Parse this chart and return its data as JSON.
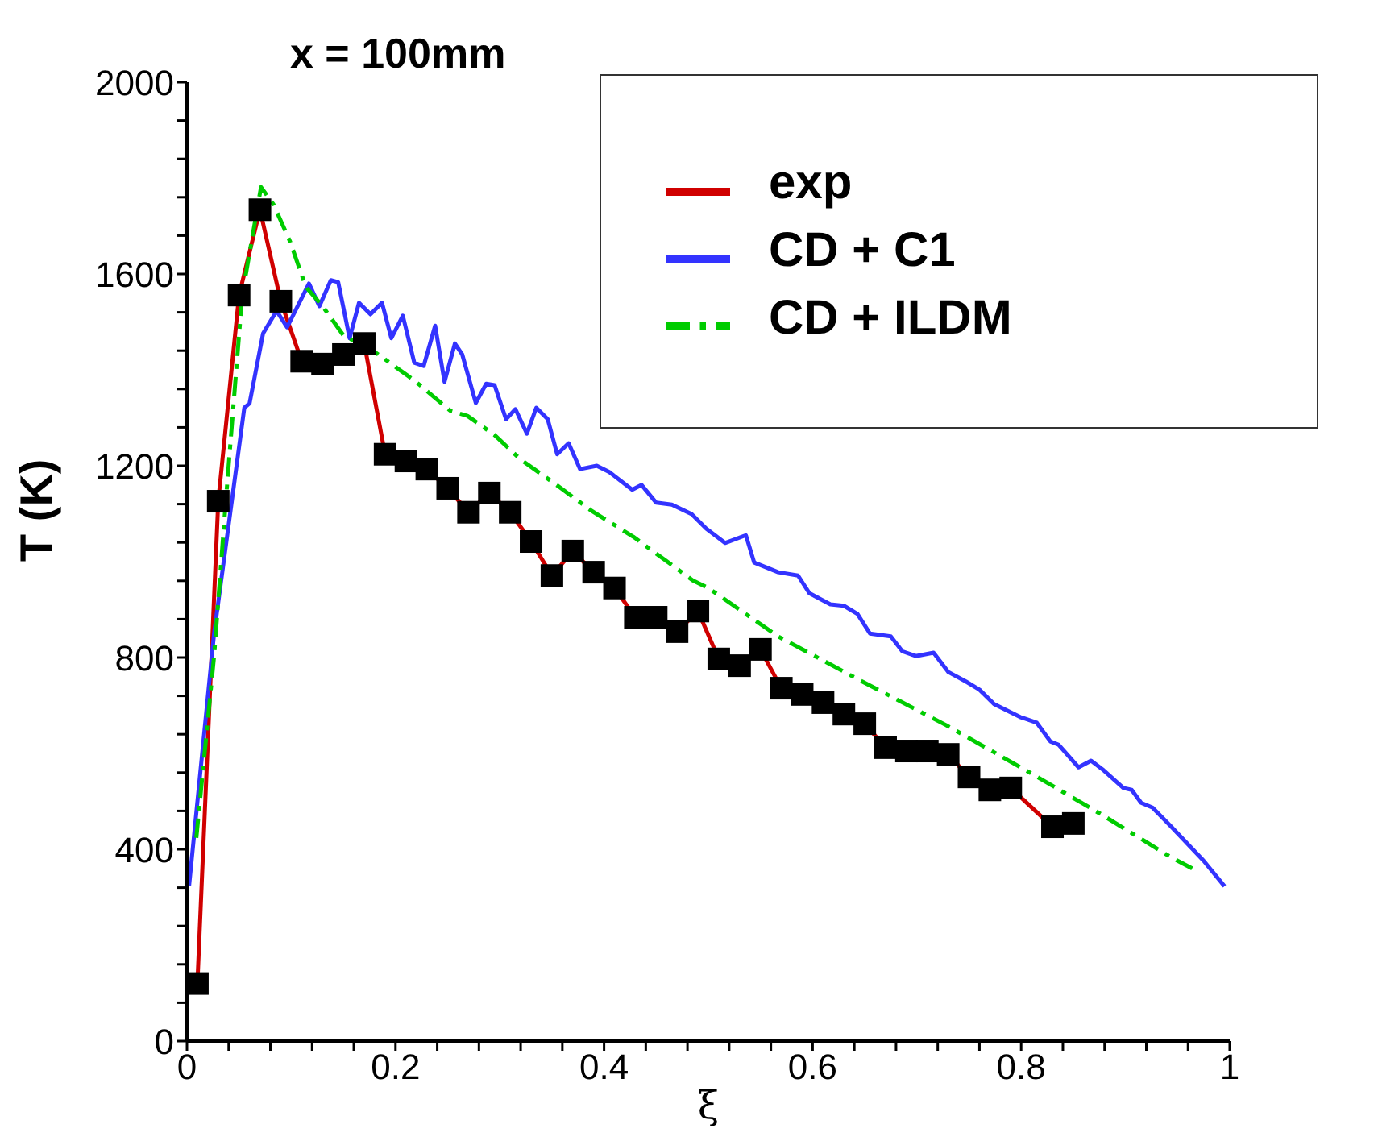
{
  "chart_data": {
    "type": "line",
    "title": "x = 100mm",
    "xlabel": "ξ",
    "ylabel": "T (K)",
    "xlim": [
      0,
      1
    ],
    "ylim": [
      0,
      2000
    ],
    "xticks": [
      0,
      {
        "value": 0.04,
        "label": null
      },
      {
        "value": 0.08,
        "label": null
      },
      {
        "value": 0.12,
        "label": null
      },
      {
        "value": 0.16,
        "label": null
      },
      0.2,
      {
        "value": 0.24,
        "label": null
      },
      {
        "value": 0.28,
        "label": null
      },
      {
        "value": 0.32,
        "label": null
      },
      {
        "value": 0.36,
        "label": null
      },
      0.4,
      {
        "value": 0.44,
        "label": null
      },
      {
        "value": 0.48,
        "label": null
      },
      {
        "value": 0.52,
        "label": null
      },
      {
        "value": 0.56,
        "label": null
      },
      0.6,
      {
        "value": 0.64,
        "label": null
      },
      {
        "value": 0.68,
        "label": null
      },
      {
        "value": 0.72,
        "label": null
      },
      {
        "value": 0.76,
        "label": null
      },
      0.8,
      {
        "value": 0.84,
        "label": null
      },
      {
        "value": 0.88,
        "label": null
      },
      {
        "value": 0.92,
        "label": null
      },
      {
        "value": 0.96,
        "label": null
      },
      1
    ],
    "yticks": [
      0,
      {
        "value": 80,
        "label": null
      },
      {
        "value": 160,
        "label": null
      },
      {
        "value": 240,
        "label": null
      },
      {
        "value": 320,
        "label": null
      },
      400,
      {
        "value": 480,
        "label": null
      },
      {
        "value": 560,
        "label": null
      },
      {
        "value": 640,
        "label": null
      },
      {
        "value": 720,
        "label": null
      },
      800,
      {
        "value": 880,
        "label": null
      },
      {
        "value": 960,
        "label": null
      },
      {
        "value": 1040,
        "label": null
      },
      {
        "value": 1120,
        "label": null
      },
      1200,
      {
        "value": 1280,
        "label": null
      },
      {
        "value": 1360,
        "label": null
      },
      {
        "value": 1440,
        "label": null
      },
      {
        "value": 1520,
        "label": null
      },
      1600,
      {
        "value": 1680,
        "label": null
      },
      {
        "value": 1760,
        "label": null
      },
      {
        "value": 1840,
        "label": null
      },
      {
        "value": 1920,
        "label": null
      },
      2000
    ],
    "grid": false,
    "legend": "top right",
    "series": [
      {
        "name": "exp",
        "color": "#d00000",
        "marker": "square",
        "line_style": "solid",
        "x": [
          0.01,
          0.03,
          0.05,
          0.07,
          0.09,
          0.11,
          0.13,
          0.15,
          0.17,
          0.19,
          0.21,
          0.23,
          0.25,
          0.27,
          0.29,
          0.31,
          0.33,
          0.35,
          0.37,
          0.39,
          0.41,
          0.43,
          0.45,
          0.47,
          0.49,
          0.51,
          0.53,
          0.55,
          0.57,
          0.59,
          0.61,
          0.63,
          0.65,
          0.67,
          0.69,
          0.71,
          0.73,
          0.75,
          0.77,
          0.79,
          0.83,
          0.85
        ],
        "values": [
          120,
          1126,
          1556,
          1734,
          1543,
          1418,
          1412,
          1432,
          1455,
          1224,
          1210,
          1193,
          1153,
          1103,
          1143,
          1103,
          1042,
          971,
          1022,
          978,
          945,
          884,
          884,
          854,
          897,
          797,
          783,
          817,
          736,
          723,
          706,
          682,
          662,
          612,
          605,
          605,
          598,
          551,
          524,
          528,
          447,
          454
        ]
      },
      {
        "name": "CD + C1",
        "color": "#3333ff",
        "marker": "none",
        "line_style": "solid",
        "x": [
          0.002,
          0.026,
          0.055,
          0.06,
          0.073,
          0.086,
          0.096,
          0.117,
          0.127,
          0.138,
          0.145,
          0.156,
          0.165,
          0.176,
          0.187,
          0.196,
          0.207,
          0.218,
          0.227,
          0.238,
          0.247,
          0.257,
          0.264,
          0.277,
          0.287,
          0.295,
          0.306,
          0.315,
          0.326,
          0.335,
          0.346,
          0.355,
          0.366,
          0.377,
          0.393,
          0.405,
          0.427,
          0.436,
          0.45,
          0.465,
          0.484,
          0.498,
          0.516,
          0.536,
          0.544,
          0.567,
          0.586,
          0.597,
          0.617,
          0.63,
          0.643,
          0.655,
          0.675,
          0.686,
          0.699,
          0.716,
          0.73,
          0.747,
          0.76,
          0.774,
          0.799,
          0.815,
          0.828,
          0.836,
          0.855,
          0.867,
          0.879,
          0.898,
          0.906,
          0.915,
          0.926,
          0.944,
          0.975,
          0.995
        ],
        "values": [
          323,
          850,
          1321,
          1330,
          1476,
          1523,
          1489,
          1580,
          1533,
          1587,
          1583,
          1466,
          1540,
          1516,
          1540,
          1466,
          1513,
          1415,
          1408,
          1492,
          1375,
          1455,
          1432,
          1331,
          1371,
          1368,
          1297,
          1318,
          1267,
          1321,
          1297,
          1224,
          1247,
          1193,
          1200,
          1187,
          1150,
          1160,
          1123,
          1119,
          1099,
          1069,
          1039,
          1055,
          998,
          978,
          971,
          934,
          911,
          908,
          891,
          850,
          844,
          813,
          803,
          810,
          770,
          750,
          733,
          703,
          676,
          664,
          625,
          618,
          571,
          585,
          565,
          528,
          524,
          497,
          487,
          447,
          376,
          323
        ]
      },
      {
        "name": "CD + ILDM",
        "color": "#00cc00",
        "marker": "none",
        "line_style": "dashed",
        "x": [
          0.009,
          0.026,
          0.037,
          0.053,
          0.071,
          0.083,
          0.099,
          0.114,
          0.13,
          0.15,
          0.179,
          0.218,
          0.253,
          0.269,
          0.295,
          0.32,
          0.357,
          0.388,
          0.428,
          0.485,
          0.5,
          0.567,
          0.645,
          0.728,
          0.81,
          0.876,
          0.944,
          0.964
        ],
        "values": [
          424,
          803,
          1119,
          1556,
          1781,
          1745,
          1667,
          1573,
          1533,
          1472,
          1439,
          1378,
          1314,
          1304,
          1264,
          1213,
          1156,
          1106,
          1052,
          961,
          945,
          844,
          753,
          659,
          558,
          474,
          383,
          360
        ]
      }
    ]
  }
}
